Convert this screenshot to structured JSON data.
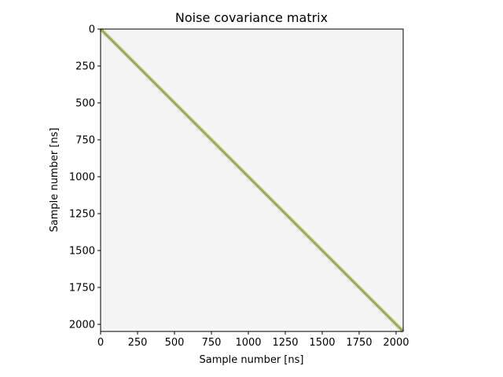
{
  "chart_data": {
    "type": "heatmap",
    "title": "Noise covariance matrix",
    "xlabel": "Sample number [ns]",
    "ylabel": "Sample number [ns]",
    "xlim": [
      0,
      2048
    ],
    "ylim": [
      2048,
      0
    ],
    "y_axis_inverted": true,
    "grid": false,
    "colorbar": false,
    "xticks": [
      0,
      250,
      500,
      750,
      1000,
      1250,
      1500,
      1750,
      2000
    ],
    "yticks": [
      0,
      250,
      500,
      750,
      1000,
      1250,
      1500,
      1750,
      2000
    ],
    "matrix_size": 2048,
    "description_values": {
      "off_diagonal_value": 0,
      "diagonal_value": 1
    },
    "colors": {
      "background": "#f5f5f5",
      "near_diagonal": "#f7d7c9",
      "diagonal_outer": "#4d9221",
      "diagonal_inner": "#b8e186"
    }
  }
}
